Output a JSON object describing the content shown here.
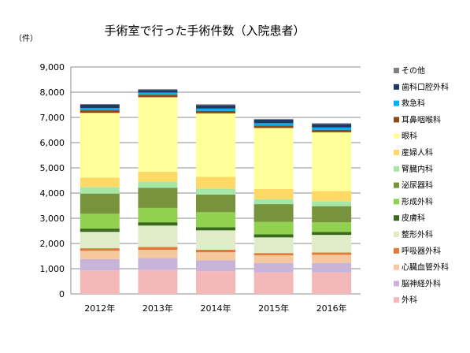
{
  "title": "手術室で行った手術件数（入院患者）",
  "unit_label": "（件）",
  "chart_data": {
    "type": "bar",
    "stacked": true,
    "title": "手術室で行った手術件数（入院患者）",
    "ylabel": "（件）",
    "xlabel": "",
    "ylim": [
      0,
      9000
    ],
    "yticks": [
      "0",
      "1,000",
      "2,000",
      "3,000",
      "4,000",
      "5,000",
      "6,000",
      "7,000",
      "8,000",
      "9,000"
    ],
    "ytick_values": [
      0,
      1000,
      2000,
      3000,
      4000,
      5000,
      6000,
      7000,
      8000,
      9000
    ],
    "categories": [
      "2012年",
      "2013年",
      "2014年",
      "2015年",
      "2016年"
    ],
    "grid": true,
    "legend_position": "right",
    "series": [
      {
        "name": "外科",
        "color": "#f4b8b8",
        "values": [
          930,
          950,
          900,
          850,
          850
        ]
      },
      {
        "name": "脳神経外科",
        "color": "#c8b4d8",
        "values": [
          450,
          480,
          430,
          380,
          380
        ]
      },
      {
        "name": "心臓血管外科",
        "color": "#f6c89e",
        "values": [
          330,
          320,
          320,
          300,
          320
        ]
      },
      {
        "name": "呼吸器外科",
        "color": "#e07b39",
        "values": [
          100,
          110,
          100,
          90,
          90
        ]
      },
      {
        "name": "整形外科",
        "color": "#e0ecc8",
        "values": [
          650,
          850,
          770,
          620,
          700
        ]
      },
      {
        "name": "皮膚科",
        "color": "#3a6a1e",
        "values": [
          130,
          130,
          120,
          120,
          120
        ]
      },
      {
        "name": "形成外科",
        "color": "#92d050",
        "values": [
          590,
          570,
          600,
          500,
          380
        ]
      },
      {
        "name": "泌尿器科",
        "color": "#77933c",
        "values": [
          800,
          800,
          700,
          700,
          640
        ]
      },
      {
        "name": "腎臓内科",
        "color": "#a6e6a6",
        "values": [
          260,
          240,
          240,
          200,
          200
        ]
      },
      {
        "name": "産婦人科",
        "color": "#ffd966",
        "values": [
          370,
          400,
          460,
          400,
          400
        ]
      },
      {
        "name": "眼科",
        "color": "#ffff99",
        "values": [
          2570,
          2950,
          2520,
          2420,
          2330
        ]
      },
      {
        "name": "耳鼻咽喉科",
        "color": "#8b4a1a",
        "values": [
          100,
          100,
          100,
          100,
          100
        ]
      },
      {
        "name": "救急科",
        "color": "#00b0f0",
        "values": [
          90,
          90,
          90,
          90,
          90
        ]
      },
      {
        "name": "歯科口腔外科",
        "color": "#1f3864",
        "values": [
          140,
          100,
          140,
          140,
          140
        ]
      },
      {
        "name": "その他",
        "color": "#808080",
        "values": [
          20,
          30,
          30,
          30,
          30
        ]
      }
    ]
  }
}
